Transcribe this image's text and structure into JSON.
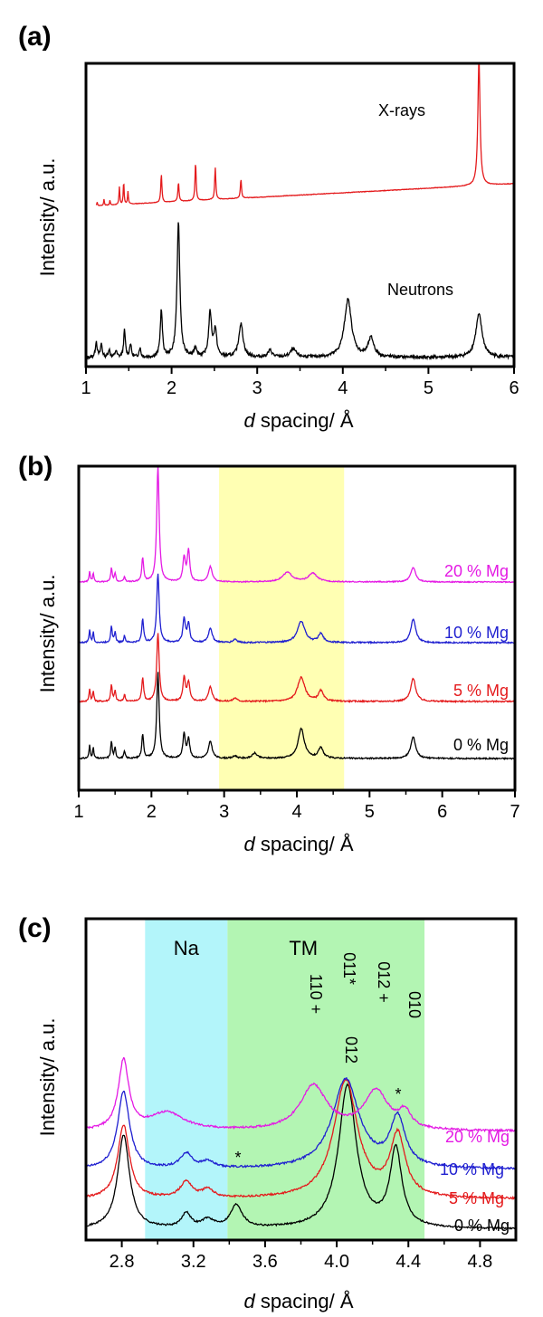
{
  "chart_data": [
    {
      "panel_label": "(a)",
      "type": "line",
      "xlabel_italic": "d",
      "xlabel_rest": " spacing/ Å",
      "ylabel": "Intensity/ a.u.",
      "xlim": [
        1,
        6
      ],
      "xticks": [
        "1",
        "2",
        "3",
        "4",
        "5",
        "6"
      ],
      "series": [
        {
          "name": "X-rays",
          "color": "#e41a1c",
          "baseline": 0.08,
          "slope": 0.02,
          "noise": 0.002,
          "peaks": [
            [
              1.13,
              0.03,
              0.005
            ],
            [
              1.21,
              0.05,
              0.005
            ],
            [
              1.28,
              0.04,
              0.005
            ],
            [
              1.39,
              0.14,
              0.006
            ],
            [
              1.44,
              0.18,
              0.006
            ],
            [
              1.49,
              0.1,
              0.006
            ],
            [
              1.88,
              0.22,
              0.008
            ],
            [
              2.08,
              0.15,
              0.008
            ],
            [
              2.28,
              0.3,
              0.008
            ],
            [
              2.51,
              0.25,
              0.008
            ],
            [
              2.81,
              0.15,
              0.008
            ],
            [
              5.59,
              1.0,
              0.015
            ]
          ]
        },
        {
          "name": "Neutrons",
          "color": "#000000",
          "baseline": 0.08,
          "slope": 0.0,
          "noise": 0.012,
          "peaks": [
            [
              1.12,
              0.12,
              0.012
            ],
            [
              1.18,
              0.1,
              0.012
            ],
            [
              1.27,
              0.06,
              0.012
            ],
            [
              1.35,
              0.05,
              0.012
            ],
            [
              1.45,
              0.2,
              0.012
            ],
            [
              1.52,
              0.1,
              0.012
            ],
            [
              1.63,
              0.07,
              0.012
            ],
            [
              1.88,
              0.35,
              0.015
            ],
            [
              2.08,
              1.0,
              0.02
            ],
            [
              2.28,
              0.07,
              0.02
            ],
            [
              2.45,
              0.33,
              0.02
            ],
            [
              2.51,
              0.2,
              0.02
            ],
            [
              2.81,
              0.25,
              0.03
            ],
            [
              3.15,
              0.05,
              0.03
            ],
            [
              3.42,
              0.06,
              0.04
            ],
            [
              4.06,
              0.43,
              0.05
            ],
            [
              4.33,
              0.14,
              0.04
            ],
            [
              5.59,
              0.32,
              0.045
            ]
          ]
        }
      ],
      "annotations": [
        {
          "text": "X-rays",
          "x": 4.8,
          "y": 0.72,
          "color": "#000000"
        },
        {
          "text": "Neutrons",
          "x": 4.6,
          "y": 0.28,
          "color": "#000000"
        }
      ]
    },
    {
      "panel_label": "(b)",
      "type": "line",
      "xlabel_italic": "d",
      "xlabel_rest": " spacing/ Å",
      "ylabel": "Intensity/ a.u.",
      "xlim": [
        1,
        7
      ],
      "xticks": [
        "1",
        "2",
        "3",
        "4",
        "5",
        "6",
        "7"
      ],
      "highlight": {
        "x0": 2.93,
        "x1": 4.65,
        "color": "#ffffb3"
      },
      "series": [
        {
          "name": "0 % Mg",
          "color": "#000000",
          "offset": 0.0,
          "noise": 0.008,
          "scale": 1.0,
          "peaks": [
            [
              1.15,
              0.15,
              0.01
            ],
            [
              1.2,
              0.12,
              0.01
            ],
            [
              1.45,
              0.2,
              0.012
            ],
            [
              1.5,
              0.12,
              0.012
            ],
            [
              1.63,
              0.08,
              0.012
            ],
            [
              1.88,
              0.28,
              0.015
            ],
            [
              2.09,
              1.0,
              0.02
            ],
            [
              2.45,
              0.28,
              0.02
            ],
            [
              2.51,
              0.22,
              0.02
            ],
            [
              2.81,
              0.2,
              0.03
            ],
            [
              3.15,
              0.03,
              0.03
            ],
            [
              3.42,
              0.06,
              0.04
            ],
            [
              4.06,
              0.35,
              0.05
            ],
            [
              4.33,
              0.12,
              0.04
            ],
            [
              5.6,
              0.25,
              0.04
            ]
          ]
        },
        {
          "name": "5 % Mg",
          "color": "#e41a1c",
          "offset": 1.0,
          "noise": 0.008,
          "scale": 1.0,
          "peaks": [
            [
              1.15,
              0.15,
              0.01
            ],
            [
              1.2,
              0.12,
              0.01
            ],
            [
              1.45,
              0.2,
              0.012
            ],
            [
              1.5,
              0.12,
              0.012
            ],
            [
              1.63,
              0.08,
              0.012
            ],
            [
              1.88,
              0.28,
              0.015
            ],
            [
              2.09,
              0.8,
              0.02
            ],
            [
              2.45,
              0.28,
              0.02
            ],
            [
              2.51,
              0.22,
              0.02
            ],
            [
              2.81,
              0.17,
              0.03
            ],
            [
              3.15,
              0.04,
              0.03
            ],
            [
              4.06,
              0.28,
              0.06
            ],
            [
              4.33,
              0.12,
              0.04
            ],
            [
              5.6,
              0.27,
              0.04
            ]
          ]
        },
        {
          "name": "10 % Mg",
          "color": "#1f1fd0",
          "offset": 2.0,
          "noise": 0.008,
          "scale": 1.0,
          "peaks": [
            [
              1.15,
              0.15,
              0.01
            ],
            [
              1.2,
              0.12,
              0.01
            ],
            [
              1.45,
              0.2,
              0.012
            ],
            [
              1.5,
              0.12,
              0.012
            ],
            [
              1.63,
              0.08,
              0.012
            ],
            [
              1.88,
              0.28,
              0.015
            ],
            [
              2.09,
              0.8,
              0.02
            ],
            [
              2.45,
              0.28,
              0.02
            ],
            [
              2.51,
              0.22,
              0.02
            ],
            [
              2.81,
              0.17,
              0.03
            ],
            [
              3.15,
              0.04,
              0.03
            ],
            [
              4.06,
              0.25,
              0.06
            ],
            [
              4.33,
              0.1,
              0.04
            ],
            [
              5.6,
              0.27,
              0.04
            ]
          ]
        },
        {
          "name": "20 % Mg",
          "color": "#e41ae4",
          "offset": 3.0,
          "noise": 0.006,
          "scale": 1.0,
          "peaks": [
            [
              1.15,
              0.12,
              0.01
            ],
            [
              1.2,
              0.1,
              0.01
            ],
            [
              1.45,
              0.16,
              0.012
            ],
            [
              1.5,
              0.1,
              0.012
            ],
            [
              1.63,
              0.06,
              0.012
            ],
            [
              1.88,
              0.28,
              0.015
            ],
            [
              2.09,
              1.35,
              0.02
            ],
            [
              2.45,
              0.28,
              0.02
            ],
            [
              2.51,
              0.36,
              0.02
            ],
            [
              2.81,
              0.18,
              0.03
            ],
            [
              3.87,
              0.11,
              0.08
            ],
            [
              4.22,
              0.1,
              0.07
            ],
            [
              5.6,
              0.17,
              0.04
            ]
          ]
        }
      ],
      "series_step": 0.45,
      "ymax": 2.55
    },
    {
      "panel_label": "(c)",
      "type": "line",
      "xlabel_italic": "d",
      "xlabel_rest": " spacing/ Å",
      "ylabel": "Intensity/ a.u.",
      "xlim": [
        2.6,
        5.0
      ],
      "xticks": [
        "2.8",
        "3.2",
        "3.6",
        "4.0",
        "4.4",
        "4.8"
      ],
      "regions": [
        {
          "label": "Na",
          "x0": 2.93,
          "x1": 3.39,
          "color": "#b3f5fa"
        },
        {
          "label": "TM",
          "x0": 3.39,
          "x1": 4.49,
          "color": "#b3f5b3"
        }
      ],
      "series": [
        {
          "name": "0 % Mg",
          "color": "#000000",
          "noise": 0.01,
          "peaks": [
            [
              2.81,
              1.15,
              0.04
            ],
            [
              3.16,
              0.18,
              0.03
            ],
            [
              3.28,
              0.1,
              0.04
            ],
            [
              3.44,
              0.28,
              0.04
            ],
            [
              4.06,
              1.75,
              0.06
            ],
            [
              4.33,
              0.95,
              0.04
            ]
          ]
        },
        {
          "name": "5 % Mg",
          "color": "#e41a1c",
          "noise": 0.012,
          "peaks": [
            [
              2.81,
              0.9,
              0.04
            ],
            [
              3.16,
              0.2,
              0.04
            ],
            [
              3.28,
              0.1,
              0.04
            ],
            [
              4.05,
              1.45,
              0.08
            ],
            [
              4.34,
              0.75,
              0.05
            ]
          ]
        },
        {
          "name": "10 % Mg",
          "color": "#1f1fd0",
          "noise": 0.012,
          "peaks": [
            [
              2.81,
              0.95,
              0.04
            ],
            [
              3.16,
              0.18,
              0.04
            ],
            [
              3.28,
              0.08,
              0.04
            ],
            [
              4.05,
              1.1,
              0.09
            ],
            [
              4.34,
              0.6,
              0.05
            ]
          ]
        },
        {
          "name": "20 % Mg",
          "color": "#e41ae4",
          "noise": 0.012,
          "peaks": [
            [
              2.81,
              0.85,
              0.035
            ],
            [
              3.05,
              0.22,
              0.12
            ],
            [
              3.87,
              0.55,
              0.09
            ],
            [
              4.22,
              0.48,
              0.08
            ],
            [
              4.38,
              0.2,
              0.04
            ]
          ]
        }
      ],
      "offsets": [
        0.0,
        0.35,
        0.75,
        1.35
      ],
      "ymax": 3.6,
      "peak_labels": [
        {
          "text": "012",
          "x": 3.52,
          "y": 1.85,
          "rotate": 90,
          "color": "#000000"
        },
        {
          "text": "110 +",
          "x": 3.87,
          "y": 2.55,
          "rotate": 90,
          "color": "#000000"
        },
        {
          "text": "011*",
          "x": 4.05,
          "y": 3.1,
          "rotate": 90,
          "color": "#000000"
        },
        {
          "text": "012 +",
          "x": 4.2,
          "y": 2.85,
          "rotate": 90,
          "color": "#000000"
        },
        {
          "text": "010",
          "x": 4.35,
          "y": 2.55,
          "rotate": 90,
          "color": "#000000"
        },
        {
          "text": "*",
          "x": 3.44,
          "y": 0.55,
          "rotate": 0,
          "color": "#000000"
        },
        {
          "text": "*",
          "x": 4.34,
          "y": 1.2,
          "rotate": 0,
          "color": "#000000"
        }
      ]
    }
  ]
}
